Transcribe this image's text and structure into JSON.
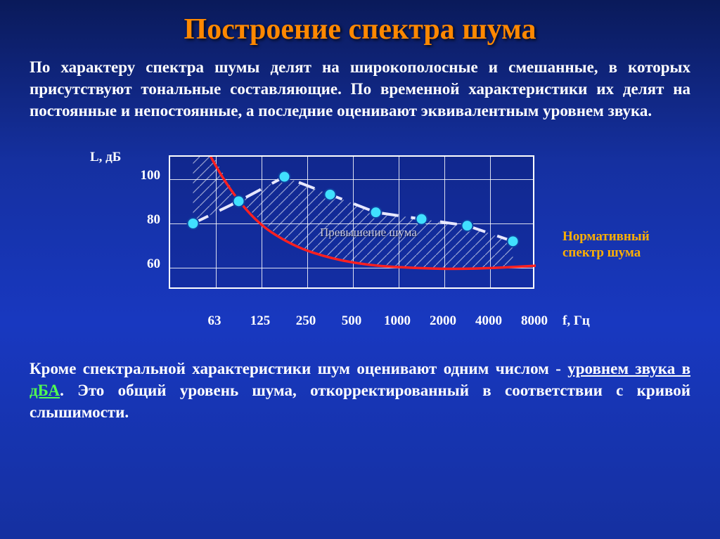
{
  "title": "Построение спектра шума",
  "paragraph": "По характеру спектра шумы делят на широкополосные и смешанные, в которых присутствуют тональные составляющие. По временной характеристики их делят на постоянные и непостоянные, а последние оценивают эквивалентным уровнем звука.",
  "chart": {
    "type": "line",
    "y_label": "L, дБ",
    "x_label": "f, Гц",
    "x_ticks": [
      "63",
      "125",
      "250",
      "500",
      "1000",
      "2000",
      "4000",
      "8000"
    ],
    "y_ticks": [
      60,
      80,
      100
    ],
    "ylim": [
      50,
      110
    ],
    "background_color": "rgba(0,0,50,0.15)",
    "grid_color": "#ffffff",
    "measured": {
      "values": [
        80,
        90,
        101,
        93,
        85,
        82,
        79,
        72
      ],
      "marker_color": "#40e0ff",
      "marker_stroke": "#1040a0",
      "line_color": "#e8e8ff",
      "line_width": 4,
      "marker_size": 8,
      "dash": "24 18"
    },
    "normative": {
      "values": [
        150,
        108,
        82,
        70,
        64,
        61,
        60,
        59.5,
        60,
        61
      ],
      "color": "#ff2020",
      "width": 3.5
    },
    "hatch_label": "Превышение шума",
    "hatch_color": "#ffffff",
    "legend_text1": "Нормативный",
    "legend_text2": "спектр шума"
  },
  "bottom": {
    "pre": "Кроме спектральной характеристики шум оценивают одним числом - ",
    "underlined": "уровнем звука в ",
    "accent": "дБА",
    "post": ". Это общий уровень шума, откорректированный в соответствии с кривой слышимости."
  }
}
